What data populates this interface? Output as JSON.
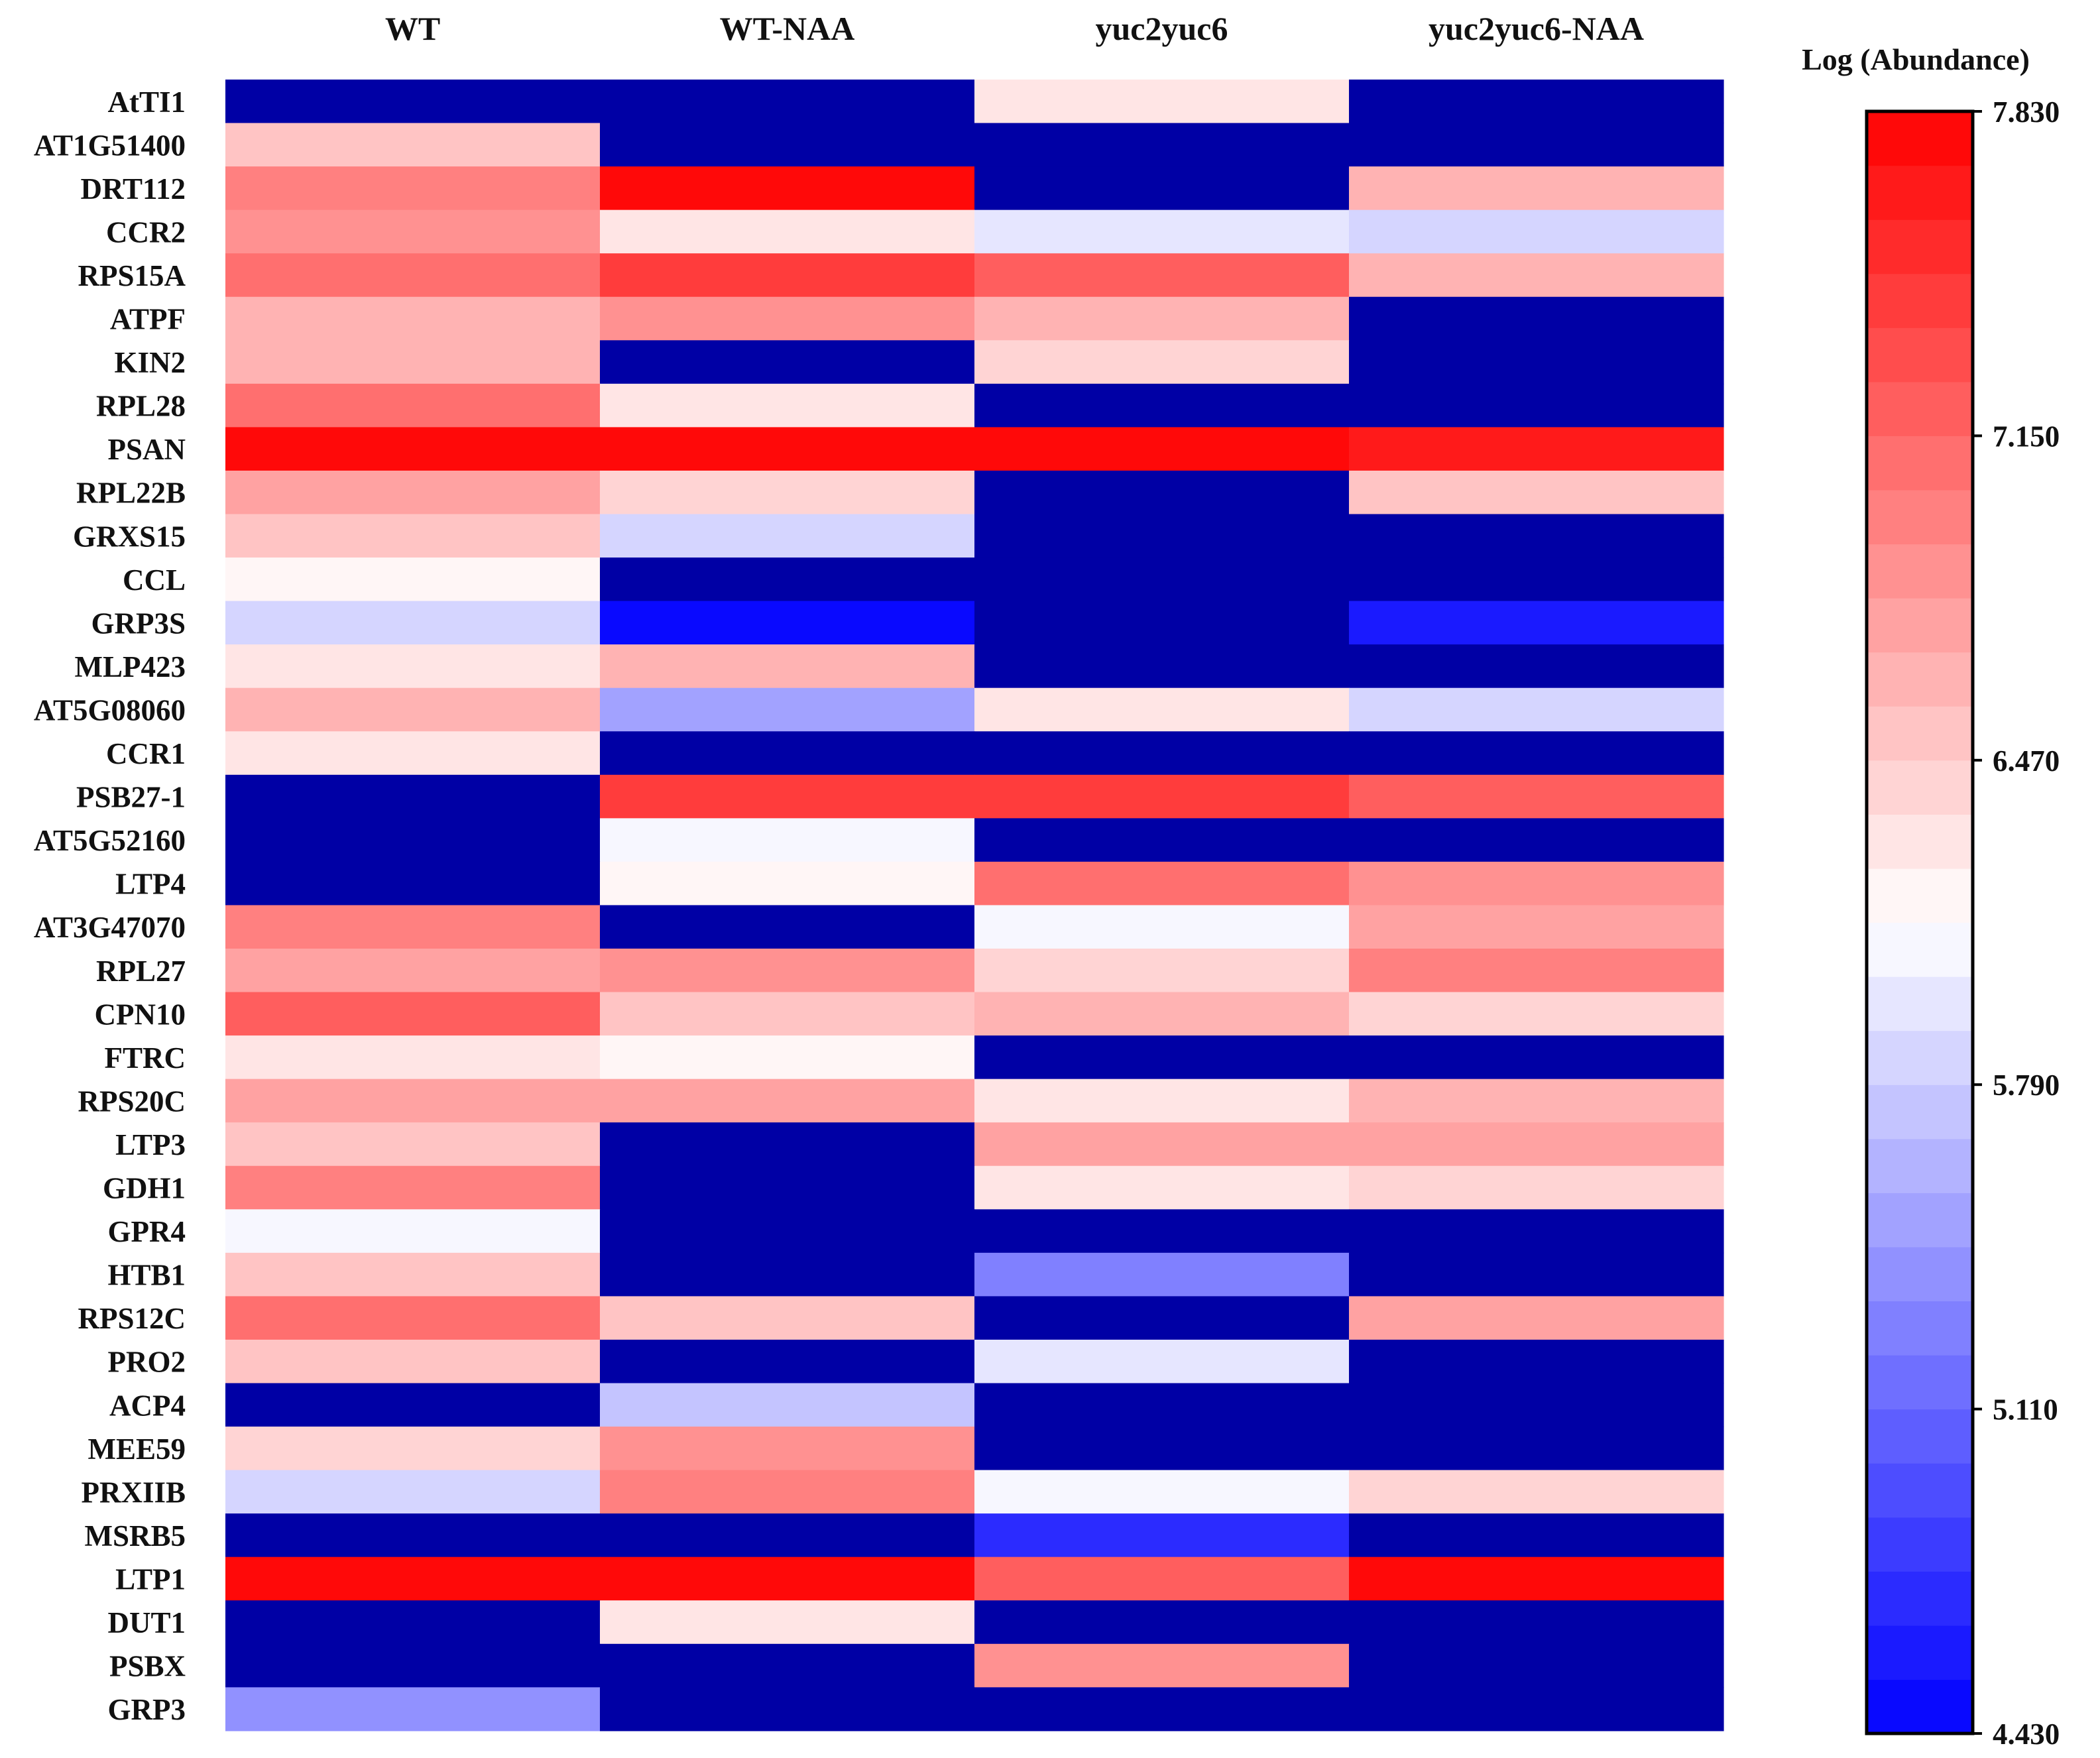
{
  "chart_data": {
    "type": "heatmap",
    "title": "",
    "xlabel": "",
    "ylabel": "",
    "columns": [
      "WT",
      "WT-NAA",
      "yuc2yuc6",
      "yuc2yuc6-NAA"
    ],
    "rows": [
      "AtTI1",
      "AT1G51400",
      "DRT112",
      "CCR2",
      "RPS15A",
      "ATPF",
      "KIN2",
      "RPL28",
      "PSAN",
      "RPL22B",
      "GRXS15",
      "CCL",
      "GRP3S",
      "MLP423",
      "AT5G08060",
      "CCR1",
      "PSB27-1",
      "AT5G52160",
      "LTP4",
      "AT3G47070",
      "RPL27",
      "CPN10",
      "FTRC",
      "RPS20C",
      "LTP3",
      "GDH1",
      "GPR4",
      "HTB1",
      "RPS12C",
      "PRO2",
      "ACP4",
      "MEE59",
      "PRXIIB",
      "MSRB5",
      "LTP1",
      "DUT1",
      "PSBX",
      "GRP3"
    ],
    "values": [
      [
        null,
        null,
        6.3,
        null
      ],
      [
        6.55,
        null,
        null,
        null
      ],
      [
        6.98,
        7.72,
        null,
        6.6
      ],
      [
        6.85,
        6.3,
        5.98,
        5.88
      ],
      [
        7.1,
        7.45,
        7.15,
        6.68
      ],
      [
        6.62,
        6.85,
        6.68,
        null
      ],
      [
        6.62,
        null,
        6.42,
        null
      ],
      [
        7.08,
        6.3,
        null,
        null
      ],
      [
        7.82,
        7.82,
        7.82,
        7.65
      ],
      [
        6.7,
        6.45,
        null,
        6.58
      ],
      [
        6.47,
        5.85,
        null,
        null
      ],
      [
        6.18,
        null,
        null,
        null
      ],
      [
        5.9,
        4.5,
        null,
        4.55
      ],
      [
        6.3,
        6.68,
        null,
        null
      ],
      [
        6.68,
        5.52,
        6.3,
        5.8
      ],
      [
        6.3,
        null,
        null,
        null
      ],
      [
        null,
        7.4,
        7.45,
        7.25
      ],
      [
        null,
        6.05,
        null,
        null
      ],
      [
        null,
        6.2,
        7.1,
        6.85
      ],
      [
        6.95,
        null,
        6.05,
        6.75
      ],
      [
        6.78,
        6.9,
        6.4,
        7.0
      ],
      [
        7.2,
        6.58,
        6.6,
        6.45
      ],
      [
        6.28,
        6.18,
        null,
        null
      ],
      [
        6.72,
        6.72,
        6.3,
        6.6
      ],
      [
        6.5,
        null,
        6.7,
        6.7
      ],
      [
        7.02,
        null,
        6.3,
        6.4
      ],
      [
        6.05,
        null,
        null,
        null
      ],
      [
        6.5,
        null,
        5.3,
        null
      ],
      [
        7.1,
        6.55,
        null,
        6.75
      ],
      [
        6.58,
        null,
        5.92,
        null
      ],
      [
        null,
        5.7,
        null,
        null
      ],
      [
        6.4,
        6.88,
        null,
        null
      ],
      [
        5.85,
        6.98,
        6.05,
        6.4
      ],
      [
        null,
        null,
        4.75,
        null
      ],
      [
        7.83,
        7.83,
        7.15,
        7.78
      ],
      [
        null,
        6.3,
        null,
        null
      ],
      [
        null,
        null,
        6.9,
        null
      ],
      [
        5.35,
        null,
        null,
        null
      ]
    ],
    "missing_value_color": "#0000a5",
    "colorbar": {
      "title": "Log (Abundance)",
      "min": 4.43,
      "max": 7.83,
      "ticks": [
        "7.830",
        "7.150",
        "6.470",
        "5.790",
        "5.110",
        "4.430"
      ],
      "tick_values": [
        7.83,
        7.15,
        6.47,
        5.79,
        5.11,
        4.43
      ],
      "bands": 30,
      "low_color": "#0000ff",
      "mid_color": "#ffffff",
      "high_color": "#ff0000",
      "position": "right"
    }
  }
}
